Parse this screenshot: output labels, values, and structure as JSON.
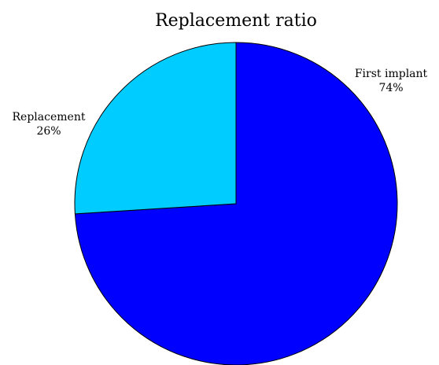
{
  "chart_data": {
    "type": "pie",
    "title": "Replacement ratio",
    "slices": [
      {
        "label": "First implant",
        "value": 74,
        "value_label": "74%",
        "color": "#0000ff"
      },
      {
        "label": "Replacement",
        "value": 26,
        "value_label": "26%",
        "color": "#00ccff"
      }
    ],
    "start_angle": "top (12 o'clock), clockwise",
    "edge_color": "#000000"
  }
}
